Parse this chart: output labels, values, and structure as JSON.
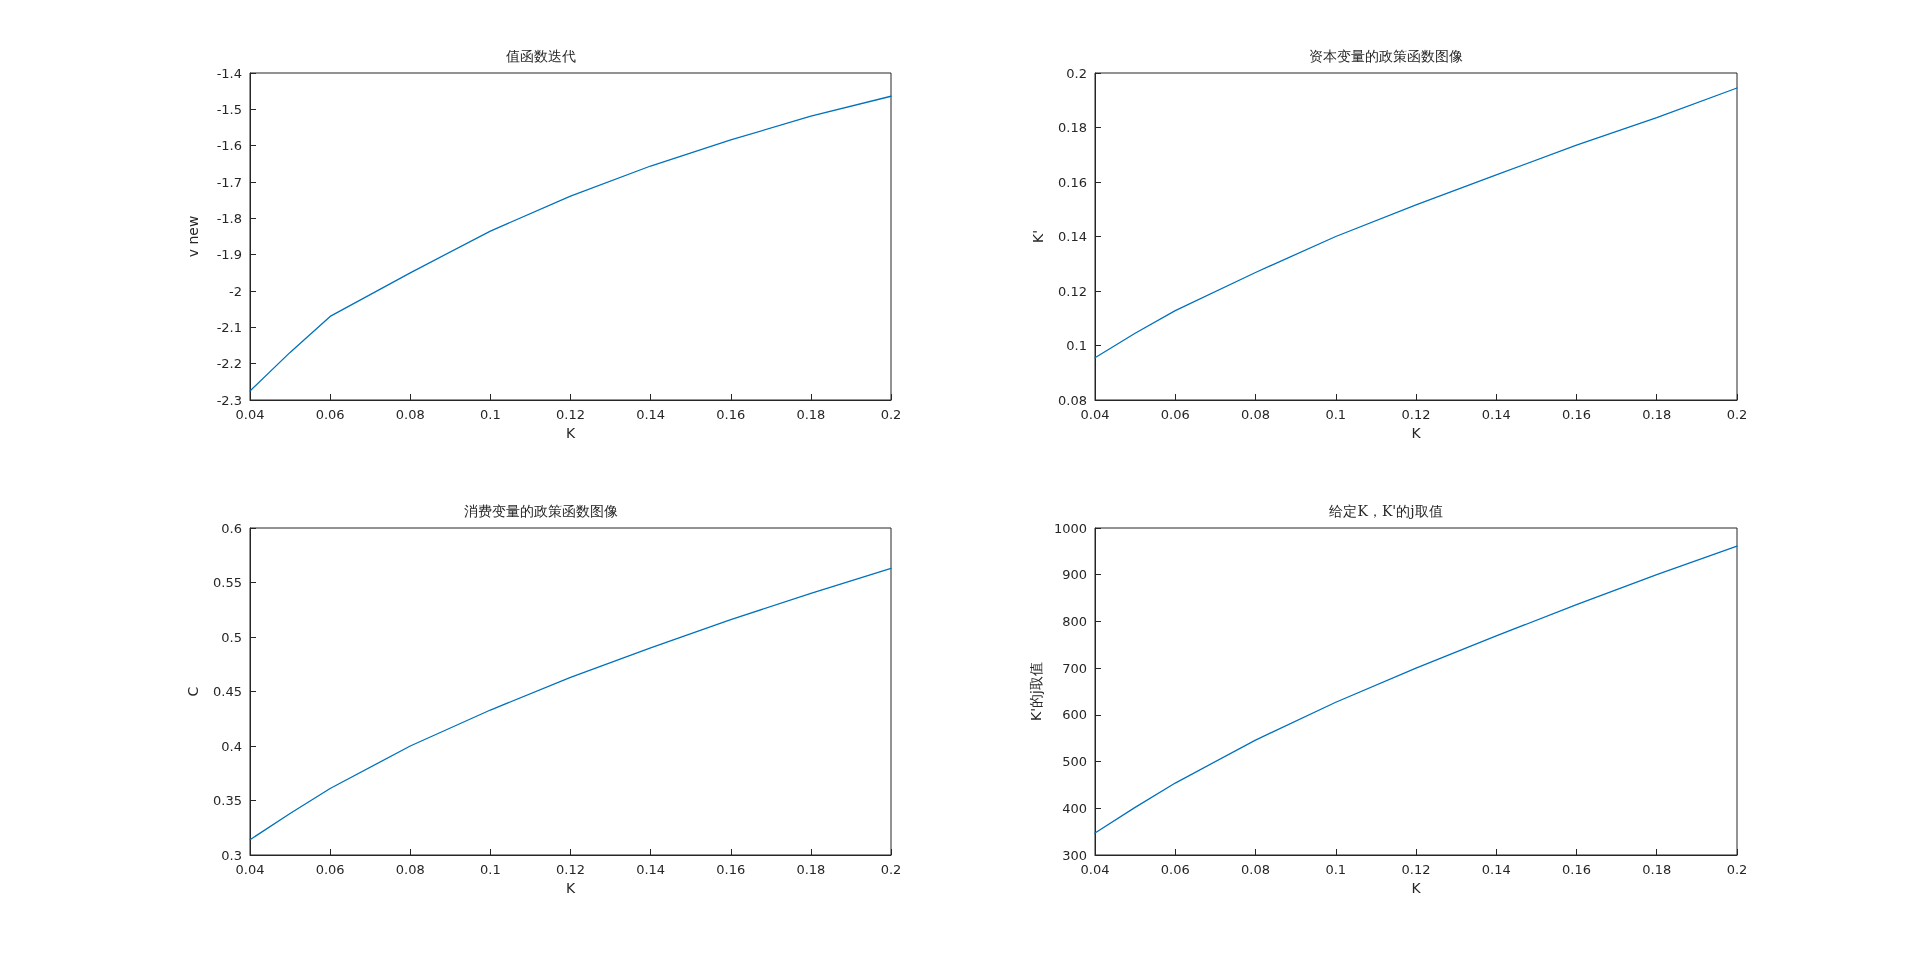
{
  "chart_data": [
    {
      "type": "line",
      "title": "值函数迭代",
      "xlabel": "K",
      "ylabel": "v new",
      "color": "#0072bd",
      "x": [
        0.04,
        0.05,
        0.06,
        0.08,
        0.1,
        0.12,
        0.14,
        0.16,
        0.18,
        0.2
      ],
      "values": [
        -2.275,
        -2.169,
        -2.07,
        -1.95,
        -1.835,
        -1.739,
        -1.656,
        -1.584,
        -1.519,
        -1.464
      ],
      "xlim": [
        0.04,
        0.2
      ],
      "xticks": [
        0.04,
        0.06,
        0.08,
        0.1,
        0.12,
        0.14,
        0.16,
        0.18,
        0.2
      ],
      "ylim": [
        -2.3,
        -1.4
      ],
      "yticks": [
        -2.3,
        -2.2,
        -2.1,
        -2,
        -1.9,
        -1.8,
        -1.7,
        -1.6,
        -1.5,
        -1.4
      ],
      "grid": false
    },
    {
      "type": "line",
      "title": "资本变量的政策函数图像",
      "xlabel": "K",
      "ylabel": "K'",
      "color": "#0072bd",
      "x": [
        0.04,
        0.05,
        0.06,
        0.08,
        0.1,
        0.12,
        0.14,
        0.16,
        0.18,
        0.2
      ],
      "values": [
        0.0955,
        0.1045,
        0.1128,
        0.1268,
        0.14,
        0.1516,
        0.1626,
        0.1735,
        0.1836,
        0.1945
      ],
      "xlim": [
        0.04,
        0.2
      ],
      "xticks": [
        0.04,
        0.06,
        0.08,
        0.1,
        0.12,
        0.14,
        0.16,
        0.18,
        0.2
      ],
      "ylim": [
        0.08,
        0.2
      ],
      "yticks": [
        0.08,
        0.1,
        0.12,
        0.14,
        0.16,
        0.18,
        0.2
      ],
      "grid": false
    },
    {
      "type": "line",
      "title": "消费变量的政策函数图像",
      "xlabel": "K",
      "ylabel": "C",
      "color": "#0072bd",
      "x": [
        0.04,
        0.05,
        0.06,
        0.08,
        0.1,
        0.12,
        0.14,
        0.16,
        0.18,
        0.2
      ],
      "values": [
        0.314,
        0.338,
        0.361,
        0.4,
        0.433,
        0.463,
        0.49,
        0.516,
        0.54,
        0.563
      ],
      "xlim": [
        0.04,
        0.2
      ],
      "xticks": [
        0.04,
        0.06,
        0.08,
        0.1,
        0.12,
        0.14,
        0.16,
        0.18,
        0.2
      ],
      "ylim": [
        0.3,
        0.6
      ],
      "yticks": [
        0.3,
        0.35,
        0.4,
        0.45,
        0.5,
        0.55,
        0.6
      ],
      "grid": false
    },
    {
      "type": "line",
      "title": "给定K，K'的j取值",
      "xlabel": "K",
      "ylabel": "K'的j取值",
      "color": "#0072bd",
      "x": [
        0.04,
        0.05,
        0.06,
        0.08,
        0.1,
        0.12,
        0.14,
        0.16,
        0.18,
        0.2
      ],
      "values": [
        347,
        402,
        454,
        546,
        627,
        700,
        769,
        836,
        900,
        961
      ],
      "xlim": [
        0.04,
        0.2
      ],
      "xticks": [
        0.04,
        0.06,
        0.08,
        0.1,
        0.12,
        0.14,
        0.16,
        0.18,
        0.2
      ],
      "ylim": [
        300,
        1000
      ],
      "yticks": [
        300,
        400,
        500,
        600,
        700,
        800,
        900,
        1000
      ],
      "grid": false
    }
  ]
}
